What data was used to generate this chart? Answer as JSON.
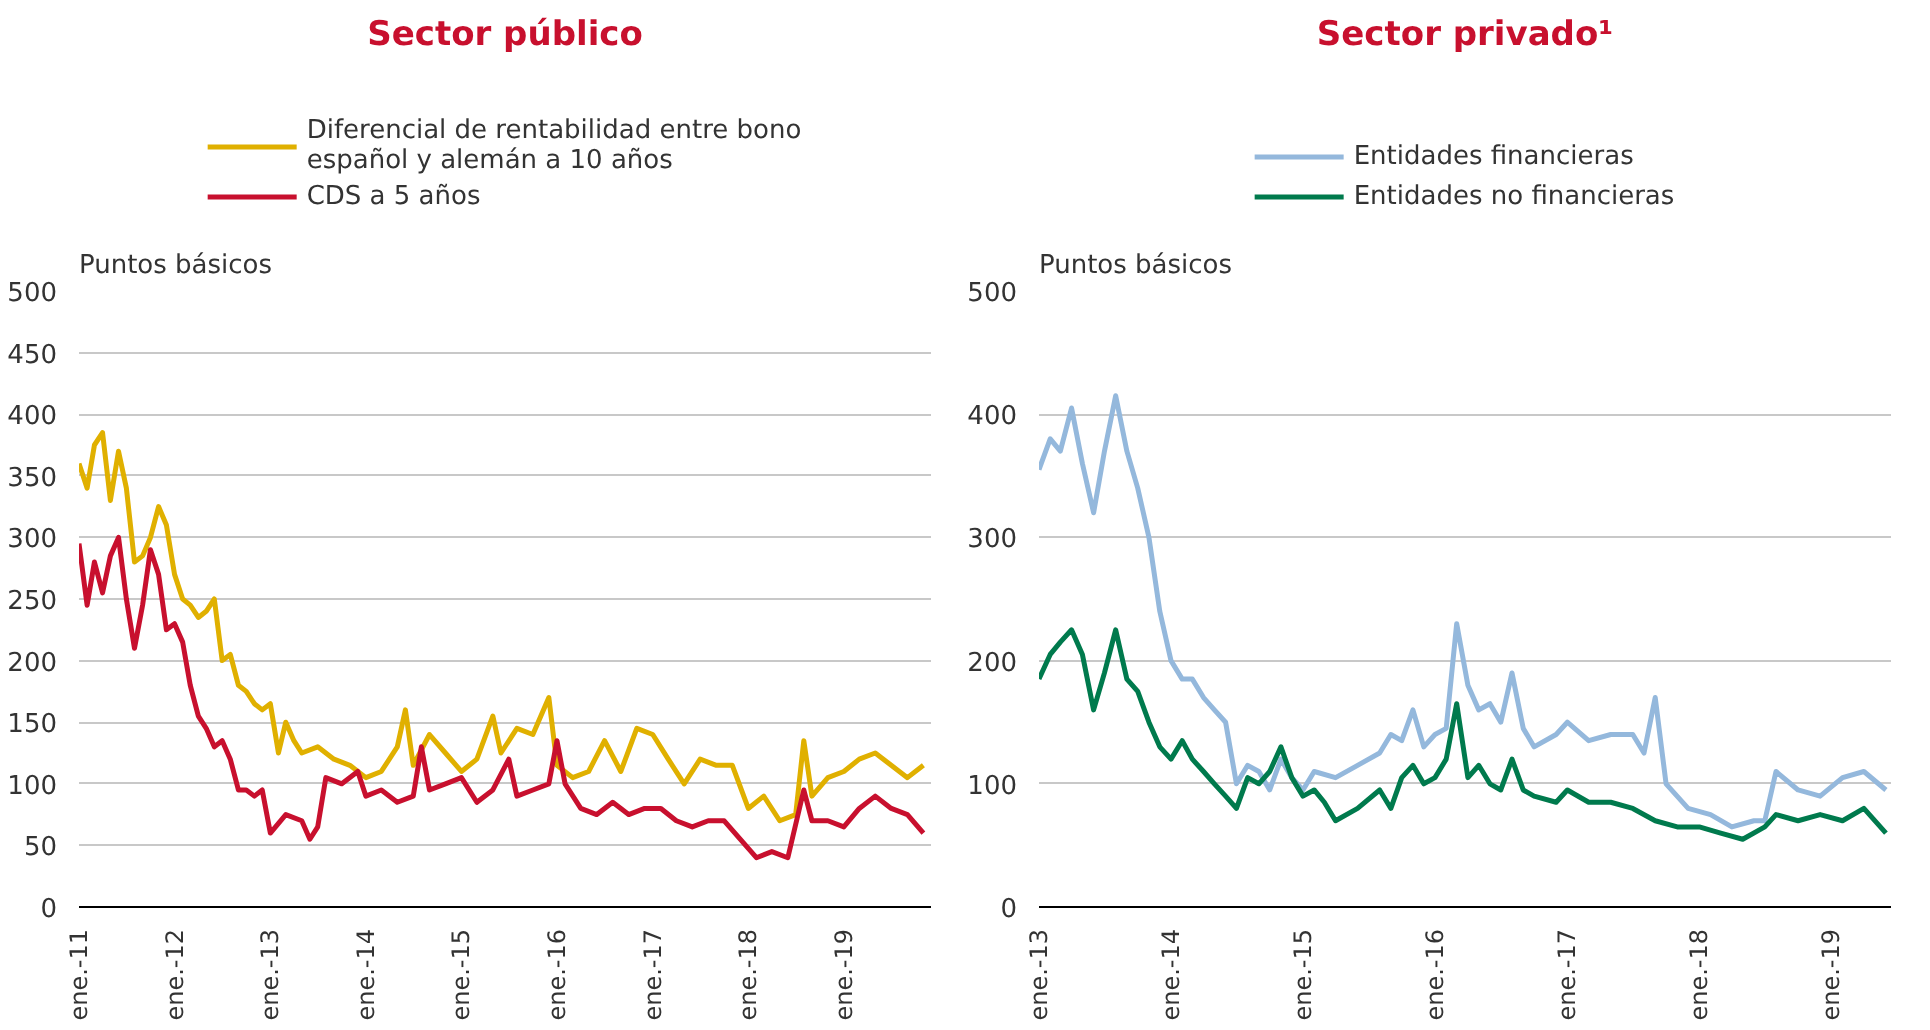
{
  "chart_data": [
    {
      "type": "line",
      "title": "Sector público",
      "ylabel": "Puntos básicos",
      "legend": "top",
      "grid": "y",
      "line_style": "solid",
      "marker": "none",
      "xlim": [
        "2011-01-01",
        "2019-11-30"
      ],
      "ylim": [
        0,
        500
      ],
      "yticks": [
        0,
        50,
        100,
        150,
        200,
        250,
        300,
        350,
        400,
        450,
        500
      ],
      "xticks": [
        {
          "value": "2011-01-01",
          "label": "ene.-11"
        },
        {
          "value": "2012-01-01",
          "label": "ene.-12"
        },
        {
          "value": "2013-01-01",
          "label": "ene.-13"
        },
        {
          "value": "2014-01-01",
          "label": "ene.-14"
        },
        {
          "value": "2015-01-01",
          "label": "ene.-15"
        },
        {
          "value": "2016-01-01",
          "label": "ene.-16"
        },
        {
          "value": "2017-01-01",
          "label": "ene.-17"
        },
        {
          "value": "2018-01-01",
          "label": "ene.-18"
        },
        {
          "value": "2019-01-01",
          "label": "ene.-19"
        }
      ],
      "series": [
        {
          "name": "Diferencial de rentabilidad entre bono español y alemán a 10 años",
          "color": "#e0b000",
          "x": [
            "2011-01",
            "2011-02",
            "2011-03",
            "2011-04",
            "2011-05",
            "2011-06",
            "2011-07",
            "2011-08",
            "2011-09",
            "2011-10",
            "2011-11",
            "2011-12",
            "2012-01",
            "2012-02",
            "2012-03",
            "2012-04",
            "2012-05",
            "2012-06",
            "2012-07",
            "2012-08",
            "2012-09",
            "2012-10",
            "2012-11",
            "2012-12",
            "2013-01",
            "2013-02",
            "2013-03",
            "2013-04",
            "2013-05",
            "2013-07",
            "2013-09",
            "2013-11",
            "2014-01",
            "2014-03",
            "2014-05",
            "2014-06",
            "2014-07",
            "2014-09",
            "2014-11",
            "2015-01",
            "2015-03",
            "2015-05",
            "2015-06",
            "2015-08",
            "2015-10",
            "2015-12",
            "2016-01",
            "2016-03",
            "2016-05",
            "2016-07",
            "2016-09",
            "2016-11",
            "2017-01",
            "2017-03",
            "2017-05",
            "2017-07",
            "2017-09",
            "2017-11",
            "2018-01",
            "2018-03",
            "2018-05",
            "2018-07",
            "2018-08",
            "2018-09",
            "2018-11",
            "2019-01",
            "2019-03",
            "2019-05",
            "2019-07",
            "2019-09",
            "2019-11"
          ],
          "values": [
            360,
            340,
            375,
            385,
            330,
            370,
            340,
            280,
            285,
            300,
            325,
            310,
            270,
            250,
            245,
            235,
            240,
            250,
            200,
            205,
            180,
            175,
            165,
            160,
            165,
            125,
            150,
            135,
            125,
            130,
            120,
            115,
            105,
            110,
            130,
            160,
            115,
            140,
            125,
            110,
            120,
            155,
            125,
            145,
            140,
            170,
            115,
            105,
            110,
            135,
            110,
            145,
            140,
            120,
            100,
            120,
            115,
            115,
            80,
            90,
            70,
            75,
            135,
            90,
            105,
            110,
            120,
            125,
            115,
            105,
            115
          ]
        },
        {
          "name": "CDS a 5 años",
          "color": "#c8102e",
          "x": [
            "2011-01",
            "2011-02",
            "2011-03",
            "2011-04",
            "2011-05",
            "2011-06",
            "2011-07",
            "2011-08",
            "2011-09",
            "2011-10",
            "2011-11",
            "2011-12",
            "2012-01",
            "2012-02",
            "2012-03",
            "2012-04",
            "2012-05",
            "2012-06",
            "2012-07",
            "2012-08",
            "2012-09",
            "2012-10",
            "2012-11",
            "2012-12",
            "2013-01",
            "2013-03",
            "2013-05",
            "2013-06",
            "2013-07",
            "2013-08",
            "2013-10",
            "2013-12",
            "2014-01",
            "2014-03",
            "2014-05",
            "2014-07",
            "2014-08",
            "2014-09",
            "2014-11",
            "2015-01",
            "2015-03",
            "2015-05",
            "2015-07",
            "2015-08",
            "2015-10",
            "2015-12",
            "2016-01",
            "2016-02",
            "2016-04",
            "2016-06",
            "2016-08",
            "2016-10",
            "2016-12",
            "2017-02",
            "2017-04",
            "2017-06",
            "2017-08",
            "2017-10",
            "2017-12",
            "2018-02",
            "2018-04",
            "2018-06",
            "2018-08",
            "2018-09",
            "2018-11",
            "2019-01",
            "2019-03",
            "2019-05",
            "2019-07",
            "2019-09",
            "2019-11"
          ],
          "values": [
            295,
            245,
            280,
            255,
            285,
            300,
            250,
            210,
            245,
            290,
            270,
            225,
            230,
            215,
            180,
            155,
            145,
            130,
            135,
            120,
            95,
            95,
            90,
            95,
            60,
            75,
            70,
            55,
            65,
            105,
            100,
            110,
            90,
            95,
            85,
            90,
            130,
            95,
            100,
            105,
            85,
            95,
            120,
            90,
            95,
            100,
            135,
            100,
            80,
            75,
            85,
            75,
            80,
            80,
            70,
            65,
            70,
            70,
            55,
            40,
            45,
            40,
            95,
            70,
            70,
            65,
            80,
            90,
            80,
            75,
            60
          ]
        }
      ]
    },
    {
      "type": "line",
      "title": "Sector privado¹",
      "ylabel": "Puntos básicos",
      "legend": "top",
      "grid": "y",
      "line_style": "solid",
      "marker": "none",
      "xlim": [
        "2013-01-01",
        "2019-06-15"
      ],
      "ylim": [
        0,
        500
      ],
      "yticks": [
        0,
        100,
        200,
        300,
        400,
        500
      ],
      "xticks": [
        {
          "value": "2013-01-01",
          "label": "ene.-13"
        },
        {
          "value": "2014-01-01",
          "label": "ene.-14"
        },
        {
          "value": "2015-01-01",
          "label": "ene.-15"
        },
        {
          "value": "2016-01-01",
          "label": "ene.-16"
        },
        {
          "value": "2017-01-01",
          "label": "ene.-17"
        },
        {
          "value": "2018-01-01",
          "label": "ene.-18"
        },
        {
          "value": "2019-01-01",
          "label": "ene.-19"
        }
      ],
      "series": [
        {
          "name": "Entidades financieras",
          "color": "#94b8dc",
          "x": [
            "2013-01",
            "2013-02",
            "2013-03",
            "2013-04",
            "2013-05",
            "2013-06",
            "2013-07",
            "2013-08",
            "2013-09",
            "2013-10",
            "2013-11",
            "2013-12",
            "2014-01",
            "2014-02",
            "2014-03",
            "2014-04",
            "2014-05",
            "2014-06",
            "2014-07",
            "2014-08",
            "2014-09",
            "2014-10",
            "2014-11",
            "2014-12",
            "2015-01",
            "2015-02",
            "2015-04",
            "2015-06",
            "2015-08",
            "2015-09",
            "2015-10",
            "2015-11",
            "2015-12",
            "2016-01",
            "2016-02",
            "2016-03",
            "2016-04",
            "2016-05",
            "2016-06",
            "2016-07",
            "2016-08",
            "2016-09",
            "2016-10",
            "2016-12",
            "2017-01",
            "2017-03",
            "2017-05",
            "2017-07",
            "2017-08",
            "2017-09",
            "2017-10",
            "2017-12",
            "2018-02",
            "2018-04",
            "2018-06",
            "2018-07",
            "2018-08",
            "2018-10",
            "2018-12",
            "2019-02",
            "2019-04",
            "2019-06"
          ],
          "values": [
            355,
            380,
            370,
            405,
            360,
            320,
            370,
            415,
            370,
            340,
            300,
            240,
            200,
            185,
            185,
            170,
            160,
            150,
            100,
            115,
            110,
            95,
            120,
            105,
            95,
            110,
            105,
            115,
            125,
            140,
            135,
            160,
            130,
            140,
            145,
            230,
            180,
            160,
            165,
            150,
            190,
            145,
            130,
            140,
            150,
            135,
            140,
            140,
            125,
            170,
            100,
            80,
            75,
            65,
            70,
            70,
            110,
            95,
            90,
            105,
            110,
            95
          ]
        },
        {
          "name": "Entidades no financieras",
          "color": "#007a4d",
          "x": [
            "2013-01",
            "2013-02",
            "2013-03",
            "2013-04",
            "2013-05",
            "2013-06",
            "2013-07",
            "2013-08",
            "2013-09",
            "2013-10",
            "2013-11",
            "2013-12",
            "2014-01",
            "2014-02",
            "2014-03",
            "2014-04",
            "2014-05",
            "2014-06",
            "2014-07",
            "2014-08",
            "2014-09",
            "2014-10",
            "2014-11",
            "2014-12",
            "2015-01",
            "2015-02",
            "2015-03",
            "2015-04",
            "2015-06",
            "2015-08",
            "2015-09",
            "2015-10",
            "2015-11",
            "2015-12",
            "2016-01",
            "2016-02",
            "2016-03",
            "2016-04",
            "2016-05",
            "2016-06",
            "2016-07",
            "2016-08",
            "2016-09",
            "2016-10",
            "2016-12",
            "2017-01",
            "2017-03",
            "2017-05",
            "2017-07",
            "2017-09",
            "2017-11",
            "2018-01",
            "2018-03",
            "2018-05",
            "2018-07",
            "2018-08",
            "2018-10",
            "2018-12",
            "2019-02",
            "2019-04",
            "2019-06"
          ],
          "values": [
            185,
            205,
            215,
            225,
            205,
            160,
            190,
            225,
            185,
            175,
            150,
            130,
            120,
            135,
            120,
            110,
            100,
            90,
            80,
            105,
            100,
            110,
            130,
            105,
            90,
            95,
            85,
            70,
            80,
            95,
            80,
            105,
            115,
            100,
            105,
            120,
            165,
            105,
            115,
            100,
            95,
            120,
            95,
            90,
            85,
            95,
            85,
            85,
            80,
            70,
            65,
            65,
            60,
            55,
            65,
            75,
            70,
            75,
            70,
            80,
            60
          ]
        }
      ]
    }
  ]
}
